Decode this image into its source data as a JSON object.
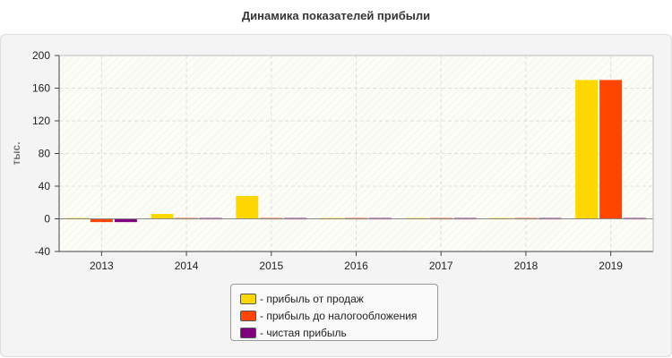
{
  "chart_data": {
    "type": "bar",
    "title": "Динамика показателей прибыли",
    "ylabel": "тыс.",
    "xlabel": "",
    "ylim": [
      -40,
      200
    ],
    "yticks": [
      -40,
      0,
      40,
      80,
      120,
      160,
      200
    ],
    "grid": true,
    "legend_position": "bottom-center",
    "categories": [
      "2013",
      "2014",
      "2015",
      "2016",
      "2017",
      "2018",
      "2019"
    ],
    "series": [
      {
        "name": "- прибыль от продаж",
        "color": "#ffd700",
        "values": [
          1,
          6,
          28,
          1,
          1,
          1,
          170
        ]
      },
      {
        "name": "- прибыль до налогообложения",
        "color": "#ff4500",
        "values": [
          -4,
          1,
          1,
          1,
          1,
          1,
          170
        ]
      },
      {
        "name": "- чистая прибыль",
        "color": "#800080",
        "values": [
          -4,
          1,
          1,
          1,
          1,
          1,
          1
        ]
      }
    ]
  }
}
